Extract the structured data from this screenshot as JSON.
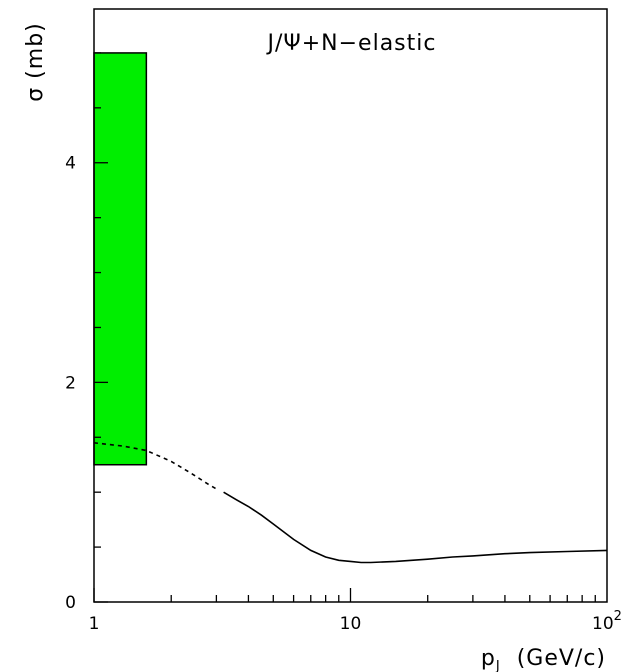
{
  "chart_data": {
    "type": "line",
    "x_scale": "log",
    "y_scale": "linear",
    "xlim": [
      1,
      100
    ],
    "ylim": [
      0,
      5.4
    ],
    "grid": false,
    "x_tick_labels": [
      {
        "value": 1,
        "label": "1"
      },
      {
        "value": 10,
        "label": "10"
      },
      {
        "value": 100,
        "label": "10",
        "sup": "2"
      }
    ],
    "y_tick_labels": [
      {
        "value": 0,
        "label": "0"
      },
      {
        "value": 2,
        "label": "2"
      },
      {
        "value": 4,
        "label": "4"
      }
    ],
    "xlabel": {
      "main": "p",
      "sub": "J",
      "rest": "  (GeV/c)"
    },
    "ylabel": "σ  (mb)",
    "annotation": "J/Ψ+N−elastic",
    "band": {
      "x": [
        1.0,
        1.6
      ],
      "y": [
        1.25,
        5.0
      ],
      "color": "#00ee00"
    },
    "series": [
      {
        "style": "dashed",
        "color": "#000000",
        "points": [
          [
            1.0,
            1.45
          ],
          [
            1.3,
            1.42
          ],
          [
            1.6,
            1.38
          ],
          [
            2.0,
            1.28
          ],
          [
            2.4,
            1.17
          ],
          [
            2.8,
            1.07
          ],
          [
            3.0,
            1.03
          ]
        ]
      },
      {
        "style": "solid",
        "color": "#000000",
        "points": [
          [
            3.2,
            1.0
          ],
          [
            3.6,
            0.93
          ],
          [
            4.0,
            0.87
          ],
          [
            4.5,
            0.79
          ],
          [
            5.0,
            0.71
          ],
          [
            6.0,
            0.57
          ],
          [
            7.0,
            0.47
          ],
          [
            8.0,
            0.41
          ],
          [
            9.0,
            0.38
          ],
          [
            10.0,
            0.37
          ],
          [
            11.0,
            0.36
          ],
          [
            12.0,
            0.36
          ],
          [
            15.0,
            0.37
          ],
          [
            20.0,
            0.39
          ],
          [
            25.0,
            0.41
          ],
          [
            30.0,
            0.42
          ],
          [
            40.0,
            0.44
          ],
          [
            50.0,
            0.45
          ],
          [
            70.0,
            0.46
          ],
          [
            100.0,
            0.47
          ]
        ]
      }
    ]
  }
}
